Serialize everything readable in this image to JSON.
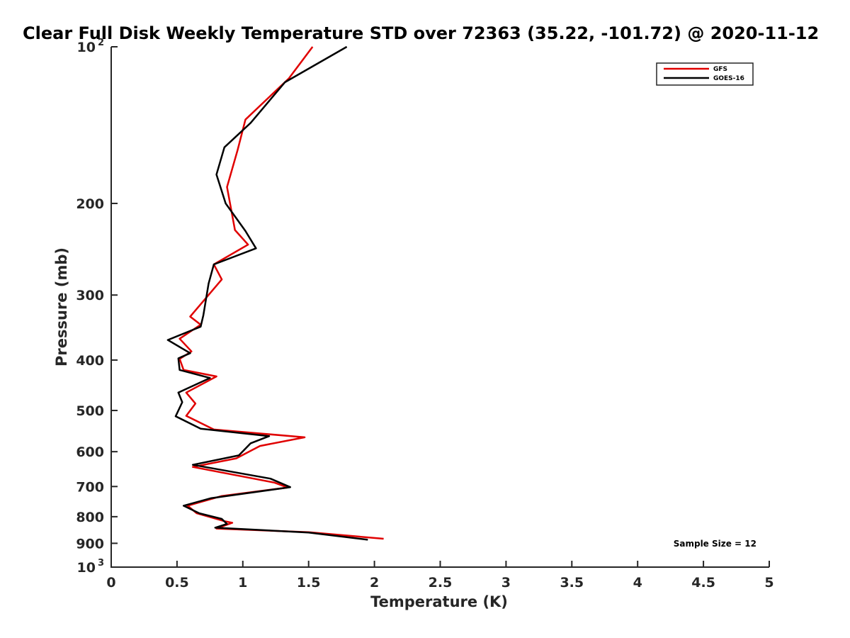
{
  "chart_data": {
    "type": "line",
    "title": "Clear Full Disk Weekly Temperature STD over 72363 (35.22, -101.72) @ 2020-11-12",
    "xlabel": "Temperature (K)",
    "ylabel": "Pressure (mb)",
    "xlim": [
      0,
      5
    ],
    "ylim": [
      100,
      1000
    ],
    "y_scale": "log",
    "y_reversed": true,
    "grid": false,
    "legend_position": "top-right",
    "x_ticks": [
      "0",
      "0.5",
      "1",
      "1.5",
      "2",
      "2.5",
      "3",
      "3.5",
      "4",
      "4.5",
      "5"
    ],
    "y_ticks": [
      {
        "value": 100,
        "label": "10",
        "exp": "2"
      },
      {
        "value": 200,
        "label": "200"
      },
      {
        "value": 300,
        "label": "300"
      },
      {
        "value": 400,
        "label": "400"
      },
      {
        "value": 500,
        "label": "500"
      },
      {
        "value": 600,
        "label": "600"
      },
      {
        "value": 700,
        "label": "700"
      },
      {
        "value": 800,
        "label": "800"
      },
      {
        "value": 900,
        "label": "900"
      },
      {
        "value": 1000,
        "label": "10",
        "exp": "3"
      }
    ],
    "annotation": "Sample Size = 12",
    "series": [
      {
        "name": "GFS",
        "color": "#e00000",
        "points": [
          [
            1.53,
            100
          ],
          [
            1.35,
            115
          ],
          [
            1.02,
            138
          ],
          [
            0.96,
            158
          ],
          [
            0.88,
            186
          ],
          [
            0.94,
            225
          ],
          [
            1.04,
            240
          ],
          [
            0.78,
            262
          ],
          [
            0.84,
            280
          ],
          [
            0.6,
            330
          ],
          [
            0.68,
            342
          ],
          [
            0.52,
            364
          ],
          [
            0.61,
            385
          ],
          [
            0.52,
            398
          ],
          [
            0.55,
            418
          ],
          [
            0.8,
            430
          ],
          [
            0.57,
            462
          ],
          [
            0.64,
            485
          ],
          [
            0.57,
            512
          ],
          [
            0.78,
            544
          ],
          [
            1.47,
            563
          ],
          [
            1.13,
            585
          ],
          [
            0.95,
            618
          ],
          [
            0.62,
            642
          ],
          [
            1.24,
            688
          ],
          [
            1.34,
            703
          ],
          [
            0.84,
            730
          ],
          [
            0.58,
            762
          ],
          [
            0.65,
            788
          ],
          [
            0.86,
            816
          ],
          [
            0.92,
            822
          ],
          [
            0.8,
            843
          ],
          [
            1.5,
            857
          ],
          [
            2.07,
            882
          ]
        ]
      },
      {
        "name": "GOES-16",
        "color": "#000000",
        "points": [
          [
            1.79,
            100
          ],
          [
            1.32,
            117
          ],
          [
            1.06,
            140
          ],
          [
            0.86,
            156
          ],
          [
            0.8,
            176
          ],
          [
            0.87,
            200
          ],
          [
            1.02,
            226
          ],
          [
            1.1,
            244
          ],
          [
            0.78,
            262
          ],
          [
            0.74,
            285
          ],
          [
            0.7,
            328
          ],
          [
            0.68,
            345
          ],
          [
            0.43,
            366
          ],
          [
            0.6,
            388
          ],
          [
            0.51,
            397
          ],
          [
            0.52,
            418
          ],
          [
            0.75,
            433
          ],
          [
            0.51,
            462
          ],
          [
            0.54,
            482
          ],
          [
            0.49,
            513
          ],
          [
            0.68,
            542
          ],
          [
            1.2,
            560
          ],
          [
            1.06,
            578
          ],
          [
            0.97,
            610
          ],
          [
            0.62,
            636
          ],
          [
            1.21,
            676
          ],
          [
            1.36,
            702
          ],
          [
            0.76,
            737
          ],
          [
            0.55,
            762
          ],
          [
            0.67,
            788
          ],
          [
            0.84,
            808
          ],
          [
            0.88,
            826
          ],
          [
            0.79,
            840
          ],
          [
            1.5,
            858
          ],
          [
            1.95,
            886
          ]
        ]
      }
    ]
  }
}
